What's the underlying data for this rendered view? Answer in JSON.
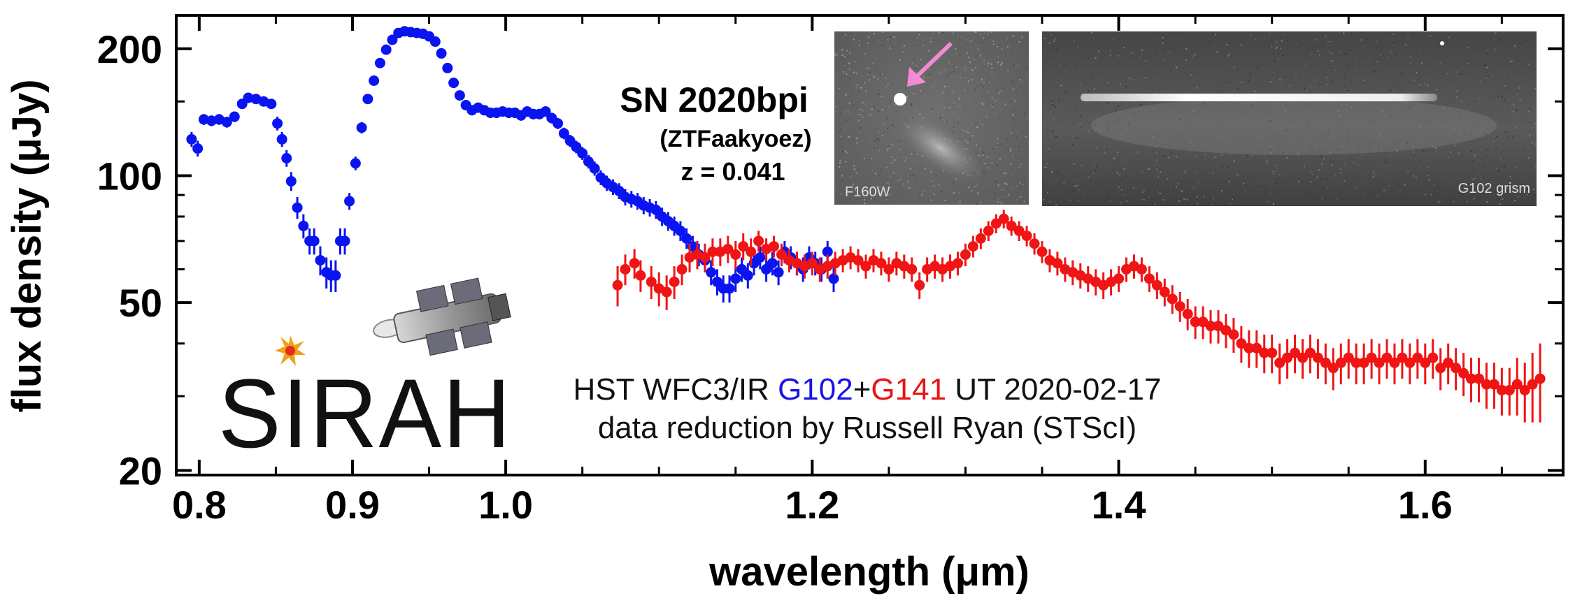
{
  "chart_data": {
    "type": "scatter",
    "xlabel": "wavelength (μm)",
    "ylabel": "flux density (μJy)",
    "yscale": "log",
    "xlim": [
      0.785,
      1.69
    ],
    "ylim": [
      19.5,
      240
    ],
    "x_ticks": [
      {
        "value": 0.8,
        "label": "0.8"
      },
      {
        "value": 0.9,
        "label": "0.9"
      },
      {
        "value": 1.0,
        "label": "1.0"
      },
      {
        "value": 1.2,
        "label": "1.2"
      },
      {
        "value": 1.4,
        "label": "1.4"
      },
      {
        "value": 1.6,
        "label": "1.6"
      }
    ],
    "y_ticks": [
      {
        "value": 20,
        "label": "20"
      },
      {
        "value": 50,
        "label": "50"
      },
      {
        "value": 100,
        "label": "100"
      },
      {
        "value": 200,
        "label": "200"
      }
    ],
    "grid": false,
    "series": [
      {
        "name": "G102",
        "color": "#0a14f0",
        "points": [
          [
            0.795,
            122,
            5
          ],
          [
            0.799,
            116,
            5
          ],
          [
            0.803,
            136,
            4
          ],
          [
            0.808,
            135,
            4
          ],
          [
            0.813,
            136,
            4
          ],
          [
            0.818,
            134,
            4
          ],
          [
            0.823,
            138,
            4
          ],
          [
            0.828,
            148,
            4
          ],
          [
            0.832,
            153,
            4
          ],
          [
            0.837,
            152,
            4
          ],
          [
            0.842,
            150,
            4
          ],
          [
            0.847,
            148,
            4
          ],
          [
            0.851,
            133,
            5
          ],
          [
            0.854,
            122,
            5
          ],
          [
            0.857,
            110,
            5
          ],
          [
            0.86,
            97,
            5
          ],
          [
            0.864,
            84,
            5
          ],
          [
            0.868,
            76,
            5
          ],
          [
            0.872,
            70,
            5
          ],
          [
            0.875,
            70,
            5
          ],
          [
            0.879,
            63,
            5
          ],
          [
            0.883,
            59,
            5
          ],
          [
            0.886,
            58,
            5
          ],
          [
            0.889,
            58,
            5
          ],
          [
            0.892,
            70,
            5
          ],
          [
            0.895,
            70,
            5
          ],
          [
            0.898,
            87,
            4
          ],
          [
            0.902,
            107,
            4
          ],
          [
            0.906,
            130,
            4
          ],
          [
            0.91,
            152,
            4
          ],
          [
            0.914,
            168,
            4
          ],
          [
            0.918,
            185,
            4
          ],
          [
            0.922,
            199,
            4
          ],
          [
            0.926,
            210,
            4
          ],
          [
            0.93,
            218,
            4
          ],
          [
            0.934,
            220,
            4
          ],
          [
            0.938,
            219,
            4
          ],
          [
            0.942,
            218,
            4
          ],
          [
            0.946,
            217,
            4
          ],
          [
            0.95,
            214,
            4
          ],
          [
            0.954,
            208,
            4
          ],
          [
            0.958,
            195,
            4
          ],
          [
            0.962,
            180,
            4
          ],
          [
            0.966,
            166,
            4
          ],
          [
            0.97,
            155,
            4
          ],
          [
            0.974,
            147,
            4
          ],
          [
            0.978,
            143,
            4
          ],
          [
            0.982,
            145,
            4
          ],
          [
            0.986,
            143,
            4
          ],
          [
            0.99,
            141,
            4
          ],
          [
            0.994,
            141,
            4
          ],
          [
            0.998,
            142,
            4
          ],
          [
            1.002,
            141,
            4
          ],
          [
            1.006,
            141,
            4
          ],
          [
            1.01,
            139,
            4
          ],
          [
            1.014,
            142,
            4
          ],
          [
            1.018,
            140,
            4
          ],
          [
            1.022,
            140,
            4
          ],
          [
            1.026,
            142,
            4
          ],
          [
            1.03,
            137,
            4
          ],
          [
            1.034,
            133,
            4
          ],
          [
            1.038,
            126,
            4
          ],
          [
            1.042,
            121,
            4
          ],
          [
            1.046,
            117,
            4
          ],
          [
            1.05,
            113,
            4
          ],
          [
            1.054,
            108,
            4
          ],
          [
            1.058,
            104,
            4
          ],
          [
            1.062,
            99,
            4
          ],
          [
            1.066,
            96,
            4
          ],
          [
            1.07,
            94,
            4
          ],
          [
            1.074,
            92,
            4
          ],
          [
            1.078,
            89,
            4
          ],
          [
            1.082,
            88,
            4
          ],
          [
            1.086,
            87,
            4
          ],
          [
            1.09,
            85,
            4
          ],
          [
            1.094,
            84,
            4
          ],
          [
            1.098,
            83,
            4
          ],
          [
            1.102,
            80,
            4
          ],
          [
            1.106,
            78,
            4
          ],
          [
            1.11,
            76,
            4
          ],
          [
            1.114,
            74,
            4
          ],
          [
            1.118,
            71,
            4
          ],
          [
            1.122,
            68,
            4
          ],
          [
            1.126,
            65,
            4
          ],
          [
            1.13,
            63,
            4
          ],
          [
            1.134,
            59,
            4
          ],
          [
            1.138,
            56,
            4
          ],
          [
            1.142,
            54,
            4
          ],
          [
            1.146,
            54,
            4
          ],
          [
            1.15,
            57,
            4
          ],
          [
            1.154,
            60,
            4
          ],
          [
            1.158,
            58,
            4
          ],
          [
            1.162,
            62,
            4
          ],
          [
            1.166,
            64,
            4
          ],
          [
            1.17,
            60,
            4
          ],
          [
            1.174,
            62,
            4
          ],
          [
            1.178,
            59,
            4
          ],
          [
            1.182,
            66,
            4
          ],
          [
            1.186,
            64,
            4
          ],
          [
            1.19,
            62,
            4
          ],
          [
            1.194,
            60,
            4
          ],
          [
            1.198,
            64,
            4
          ],
          [
            1.202,
            62,
            4
          ],
          [
            1.206,
            60,
            4
          ],
          [
            1.21,
            66,
            4
          ],
          [
            1.214,
            57,
            4
          ]
        ]
      },
      {
        "name": "G141",
        "color": "#f01414",
        "points": [
          [
            1.073,
            55,
            6
          ],
          [
            1.078,
            60,
            5
          ],
          [
            1.084,
            62,
            5
          ],
          [
            1.088,
            58,
            5
          ],
          [
            1.095,
            56,
            5
          ],
          [
            1.1,
            54,
            5
          ],
          [
            1.105,
            53,
            5
          ],
          [
            1.11,
            56,
            5
          ],
          [
            1.115,
            60,
            5
          ],
          [
            1.12,
            64,
            5
          ],
          [
            1.125,
            65,
            5
          ],
          [
            1.13,
            64,
            5
          ],
          [
            1.135,
            66,
            5
          ],
          [
            1.14,
            66,
            5
          ],
          [
            1.145,
            67,
            5
          ],
          [
            1.15,
            65,
            5
          ],
          [
            1.155,
            68,
            5
          ],
          [
            1.16,
            66,
            5
          ],
          [
            1.165,
            70,
            4
          ],
          [
            1.17,
            67,
            4
          ],
          [
            1.175,
            68,
            4
          ],
          [
            1.18,
            65,
            4
          ],
          [
            1.185,
            63,
            4
          ],
          [
            1.19,
            62,
            4
          ],
          [
            1.195,
            61,
            4
          ],
          [
            1.2,
            62,
            4
          ],
          [
            1.205,
            60,
            4
          ],
          [
            1.21,
            61,
            4
          ],
          [
            1.215,
            62,
            4
          ],
          [
            1.22,
            63,
            4
          ],
          [
            1.225,
            64,
            4
          ],
          [
            1.23,
            63,
            4
          ],
          [
            1.235,
            61,
            4
          ],
          [
            1.24,
            63,
            4
          ],
          [
            1.245,
            62,
            4
          ],
          [
            1.25,
            60,
            4
          ],
          [
            1.255,
            62,
            4
          ],
          [
            1.26,
            61,
            4
          ],
          [
            1.265,
            60,
            4
          ],
          [
            1.27,
            55,
            4
          ],
          [
            1.275,
            60,
            4
          ],
          [
            1.28,
            61,
            4
          ],
          [
            1.285,
            60,
            4
          ],
          [
            1.29,
            61,
            4
          ],
          [
            1.295,
            62,
            4
          ],
          [
            1.3,
            65,
            4
          ],
          [
            1.305,
            68,
            4
          ],
          [
            1.31,
            71,
            4
          ],
          [
            1.315,
            74,
            4
          ],
          [
            1.32,
            77,
            4
          ],
          [
            1.325,
            79,
            4
          ],
          [
            1.33,
            76,
            4
          ],
          [
            1.335,
            74,
            4
          ],
          [
            1.34,
            72,
            4
          ],
          [
            1.345,
            69,
            4
          ],
          [
            1.35,
            66,
            4
          ],
          [
            1.355,
            63,
            4
          ],
          [
            1.36,
            62,
            4
          ],
          [
            1.365,
            60,
            4
          ],
          [
            1.37,
            59,
            4
          ],
          [
            1.375,
            58,
            4
          ],
          [
            1.38,
            57,
            4
          ],
          [
            1.385,
            56,
            4
          ],
          [
            1.39,
            55,
            4
          ],
          [
            1.395,
            56,
            4
          ],
          [
            1.4,
            57,
            4
          ],
          [
            1.405,
            60,
            4
          ],
          [
            1.41,
            61,
            4
          ],
          [
            1.415,
            60,
            4
          ],
          [
            1.42,
            57,
            4
          ],
          [
            1.425,
            55,
            4
          ],
          [
            1.43,
            53,
            4
          ],
          [
            1.435,
            51,
            4
          ],
          [
            1.44,
            49,
            4
          ],
          [
            1.445,
            47,
            4
          ],
          [
            1.45,
            45,
            4
          ],
          [
            1.455,
            45,
            4
          ],
          [
            1.46,
            44,
            4
          ],
          [
            1.465,
            44,
            4
          ],
          [
            1.47,
            43,
            4
          ],
          [
            1.475,
            42,
            4
          ],
          [
            1.48,
            40,
            4
          ],
          [
            1.485,
            39,
            4
          ],
          [
            1.49,
            39,
            4
          ],
          [
            1.495,
            38,
            4
          ],
          [
            1.5,
            38,
            4
          ],
          [
            1.505,
            36,
            4
          ],
          [
            1.51,
            37,
            4
          ],
          [
            1.515,
            38,
            4
          ],
          [
            1.52,
            37,
            4
          ],
          [
            1.525,
            38,
            4
          ],
          [
            1.53,
            37,
            4
          ],
          [
            1.535,
            36,
            4
          ],
          [
            1.54,
            35,
            4
          ],
          [
            1.545,
            36,
            4
          ],
          [
            1.55,
            37,
            4
          ],
          [
            1.555,
            36,
            4
          ],
          [
            1.56,
            36,
            4
          ],
          [
            1.565,
            37,
            4
          ],
          [
            1.57,
            36,
            4
          ],
          [
            1.575,
            37,
            4
          ],
          [
            1.58,
            36,
            4
          ],
          [
            1.585,
            37,
            4
          ],
          [
            1.59,
            36,
            4
          ],
          [
            1.595,
            37,
            4
          ],
          [
            1.6,
            36,
            4
          ],
          [
            1.605,
            37,
            4
          ],
          [
            1.61,
            35,
            4
          ],
          [
            1.615,
            36,
            4
          ],
          [
            1.62,
            35,
            4
          ],
          [
            1.625,
            34,
            4
          ],
          [
            1.63,
            33,
            4
          ],
          [
            1.635,
            33,
            4
          ],
          [
            1.64,
            32,
            4
          ],
          [
            1.645,
            32,
            4
          ],
          [
            1.65,
            31,
            4
          ],
          [
            1.655,
            31,
            4
          ],
          [
            1.66,
            32,
            5
          ],
          [
            1.665,
            31,
            5
          ],
          [
            1.67,
            32,
            6
          ],
          [
            1.675,
            33,
            7
          ]
        ]
      }
    ],
    "annotations": {
      "object_name": "SN 2020bpi",
      "object_alias": "(ZTFaakyoez)",
      "redshift": "z = 0.041",
      "credit_prefix": "HST WFC3/IR ",
      "credit_g102": "G102",
      "credit_plus": "+",
      "credit_g141": "G141",
      "credit_suffix": " UT 2020-02-17",
      "credit_line2": "data reduction by Russell Ryan (STScI)"
    },
    "insets": {
      "image_label": "F160W",
      "grism_label": "G102 grism"
    },
    "logo": {
      "text": "SIRAH"
    }
  }
}
